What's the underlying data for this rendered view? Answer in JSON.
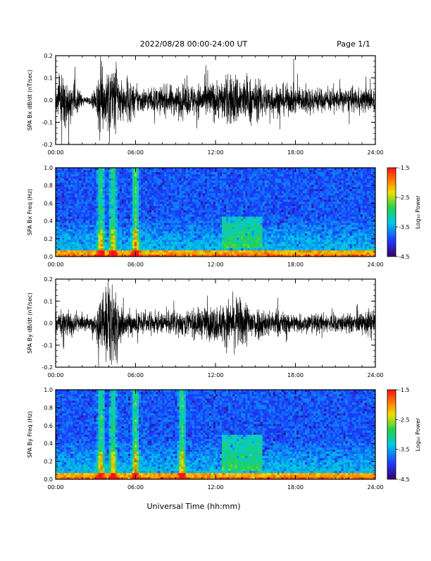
{
  "header": {
    "date_title": "2022/08/28  00:00-24:00 UT",
    "page_label": "Page 1/1"
  },
  "footer": {
    "xlabel": "Universal Time (hh:mm)"
  },
  "colors": {
    "waveform": "#000000",
    "spectrogram_background": "#1c2a8c",
    "colorbar_stops": [
      "#3a006a",
      "#1a3cff",
      "#00c8e8",
      "#22d24a",
      "#f0e000",
      "#ff7a00",
      "#ff1010"
    ]
  },
  "chart_data": [
    {
      "type": "line",
      "panel": "bx-waveform",
      "ylabel": "SPA Bx dB/dt (nT/sec)",
      "ylim": [
        -0.2,
        0.2
      ],
      "yticks": [
        "0.2",
        "0.1",
        "0.0",
        "-0.1",
        "-0.2"
      ],
      "xlim": [
        0,
        24
      ],
      "xticks": [
        "00:00",
        "06:00",
        "12:00",
        "18:00",
        "24:00"
      ],
      "envelope": {
        "hours": [
          0,
          0.5,
          1,
          1.5,
          2,
          2.5,
          3,
          3.3,
          3.6,
          4,
          4.4,
          4.8,
          5.2,
          5.6,
          6,
          7,
          8,
          9,
          10,
          11,
          12,
          12.5,
          13,
          13.5,
          14,
          14.5,
          15,
          16,
          17,
          18,
          19,
          20,
          21,
          22,
          23,
          24
        ],
        "amplitude": [
          0.08,
          0.12,
          0.13,
          0.07,
          0.03,
          0.02,
          0.05,
          0.22,
          0.12,
          0.2,
          0.22,
          0.12,
          0.09,
          0.1,
          0.07,
          0.06,
          0.07,
          0.08,
          0.08,
          0.09,
          0.1,
          0.1,
          0.13,
          0.14,
          0.12,
          0.12,
          0.1,
          0.09,
          0.08,
          0.07,
          0.07,
          0.06,
          0.06,
          0.06,
          0.06,
          0.07
        ]
      }
    },
    {
      "type": "heatmap",
      "panel": "bx-spectrogram",
      "ylabel": "SPA Bx Freq (Hz)",
      "ylim": [
        0.0,
        1.0
      ],
      "yticks": [
        "1.0",
        "0.8",
        "0.6",
        "0.4",
        "0.2",
        "0.0"
      ],
      "xlim": [
        0,
        24
      ],
      "xticks": [
        "00:00",
        "06:00",
        "12:00",
        "18:00",
        "24:00"
      ],
      "colorbar": {
        "label": "Log₁₀ Power",
        "ticks": [
          "-1.5",
          "-2.5",
          "-3.5",
          "-4.5"
        ],
        "range": [
          -4.5,
          -1.5
        ]
      },
      "bursts_hours": [
        3.4,
        4.3,
        6.0
      ],
      "enhanced_region": {
        "hours": [
          12.5,
          15.5
        ],
        "freq_hz": [
          0.1,
          0.45
        ]
      }
    },
    {
      "type": "line",
      "panel": "by-waveform",
      "ylabel": "SPA By dB/dt (nT/sec)",
      "ylim": [
        -0.2,
        0.2
      ],
      "yticks": [
        "0.2",
        "0.1",
        "0.0",
        "-0.1",
        "-0.2"
      ],
      "xlim": [
        0,
        24
      ],
      "xticks": [
        "00:00",
        "06:00",
        "12:00",
        "18:00",
        "24:00"
      ],
      "envelope": {
        "hours": [
          0,
          0.5,
          1,
          1.5,
          2,
          2.5,
          3,
          3.3,
          3.6,
          4,
          4.4,
          4.8,
          5.2,
          5.6,
          6,
          7,
          8,
          9,
          10,
          11,
          12,
          12.5,
          13,
          13.5,
          14,
          14.5,
          15,
          16,
          17,
          18,
          19,
          20,
          21,
          22,
          23,
          24
        ],
        "amplitude": [
          0.04,
          0.07,
          0.09,
          0.06,
          0.04,
          0.03,
          0.05,
          0.22,
          0.14,
          0.22,
          0.22,
          0.1,
          0.07,
          0.07,
          0.06,
          0.05,
          0.05,
          0.06,
          0.07,
          0.08,
          0.09,
          0.1,
          0.12,
          0.13,
          0.13,
          0.11,
          0.09,
          0.07,
          0.06,
          0.05,
          0.05,
          0.05,
          0.05,
          0.05,
          0.05,
          0.09
        ]
      }
    },
    {
      "type": "heatmap",
      "panel": "by-spectrogram",
      "ylabel": "SPA By Freq (Hz)",
      "ylim": [
        0.0,
        1.0
      ],
      "yticks": [
        "1.0",
        "0.8",
        "0.6",
        "0.4",
        "0.2",
        "0.0"
      ],
      "xlim": [
        0,
        24
      ],
      "xticks": [
        "00:00",
        "06:00",
        "12:00",
        "18:00",
        "24:00"
      ],
      "colorbar": {
        "label": "Log₁₀ Power",
        "ticks": [
          "-1.5",
          "-2.5",
          "-3.5",
          "-4.5"
        ],
        "range": [
          -4.5,
          -1.5
        ]
      },
      "bursts_hours": [
        3.4,
        4.3,
        6.0,
        9.5
      ],
      "enhanced_region": {
        "hours": [
          12.5,
          15.5
        ],
        "freq_hz": [
          0.1,
          0.5
        ]
      }
    }
  ]
}
